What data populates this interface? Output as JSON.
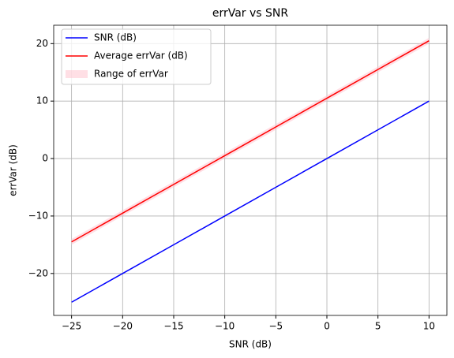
{
  "chart_data": {
    "type": "line",
    "title": "errVar vs SNR",
    "x_label": "SNR (dB)",
    "y_label": "errVar (dB)",
    "x": [
      -25,
      -20,
      -15,
      -10,
      -5,
      0,
      5,
      10
    ],
    "series": [
      {
        "name": "SNR (dB)",
        "color": "#0000ff",
        "values": [
          -25,
          -20,
          -15,
          -10,
          -5,
          0,
          5,
          10
        ]
      },
      {
        "name": "Average errVar (dB)",
        "color": "#ff0000",
        "values": [
          -14.5,
          -9.5,
          -4.5,
          0.5,
          5.5,
          10.5,
          15.5,
          20.5
        ]
      }
    ],
    "band": {
      "name": "Range of errVar",
      "color": "#ffc0cb",
      "lower": [
        -15,
        -10,
        -5,
        0,
        5,
        10,
        15,
        20
      ],
      "upper": [
        -14,
        -9,
        -4,
        1,
        6,
        11,
        16,
        21
      ]
    },
    "xlim": [
      -26.75,
      11.75
    ],
    "ylim": [
      -27.3,
      23.2
    ],
    "xticks": [
      {
        "value": -25,
        "label": "−25"
      },
      {
        "value": -20,
        "label": "−20"
      },
      {
        "value": -15,
        "label": "−15"
      },
      {
        "value": -10,
        "label": "−10"
      },
      {
        "value": -5,
        "label": "−5"
      },
      0,
      5,
      10
    ],
    "yticks": [
      {
        "value": -20,
        "label": "−20"
      },
      {
        "value": -10,
        "label": "−10"
      },
      0,
      10,
      20
    ],
    "grid": true,
    "legend": "upper left"
  }
}
